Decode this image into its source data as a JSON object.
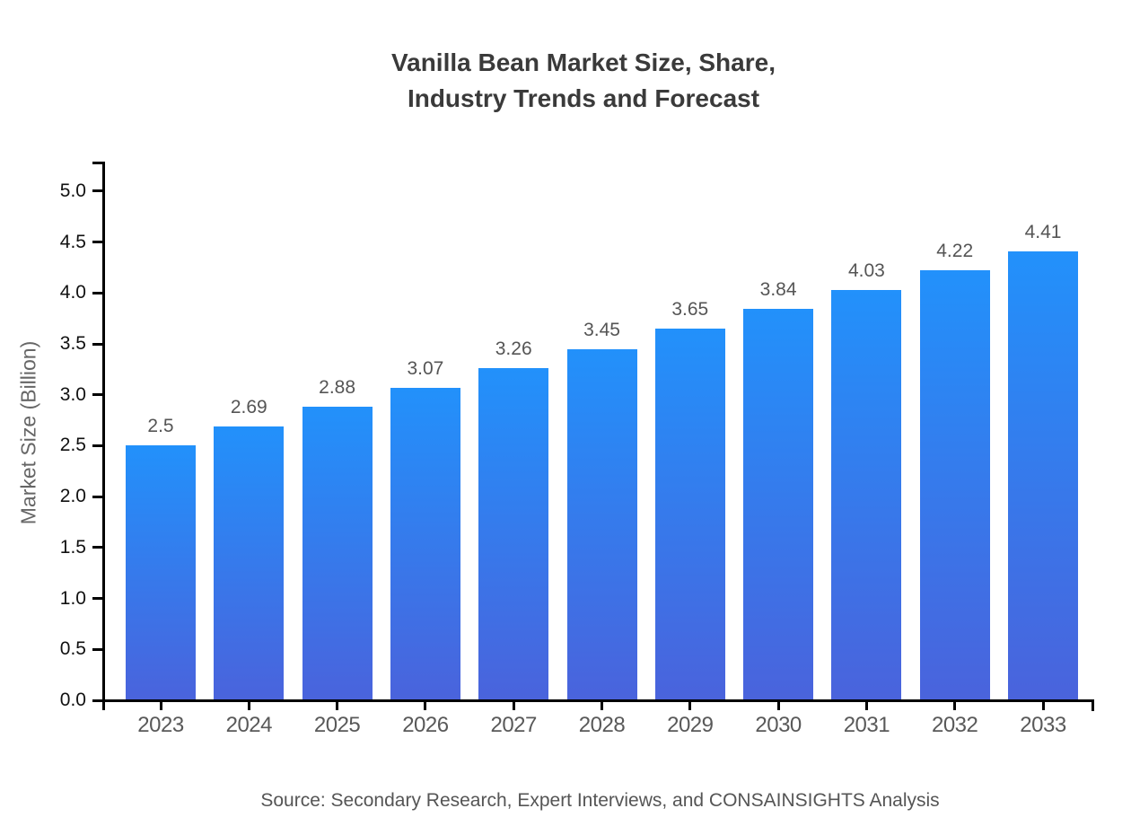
{
  "chart_data": {
    "type": "bar",
    "title_lines": [
      "Vanilla Bean Market Size, Share,",
      "Industry Trends and Forecast"
    ],
    "categories": [
      "2023",
      "2024",
      "2025",
      "2026",
      "2027",
      "2028",
      "2029",
      "2030",
      "2031",
      "2032",
      "2033"
    ],
    "values": [
      2.5,
      2.69,
      2.88,
      3.07,
      3.26,
      3.45,
      3.65,
      3.84,
      4.03,
      4.22,
      4.41
    ],
    "value_labels": [
      "2.5",
      "2.69",
      "2.88",
      "3.07",
      "3.26",
      "3.45",
      "3.65",
      "3.84",
      "4.03",
      "4.22",
      "4.41"
    ],
    "xlabel": "",
    "ylabel": "Market Size (Billion)",
    "ytick_labels": [
      "0.0",
      "0.5",
      "1.0",
      "1.5",
      "2.0",
      "2.5",
      "3.0",
      "3.5",
      "4.0",
      "4.5",
      "5.0"
    ],
    "ytick_values": [
      0.0,
      0.5,
      1.0,
      1.5,
      2.0,
      2.5,
      3.0,
      3.5,
      4.0,
      4.5,
      5.0
    ],
    "ylim": [
      0,
      5.29
    ],
    "grid": false,
    "legend": false,
    "source": "Source: Secondary Research, Expert Interviews, and CONSAINSIGHTS Analysis",
    "colors": {
      "bar_gradient_top": "#2291fb",
      "bar_gradient_bottom": "#4a63dc",
      "axis": "#000000",
      "ytick_label": "#111111",
      "xtick_label": "#595959",
      "value_label": "#555555",
      "axis_title": "#666666",
      "title": "#3a3a3a",
      "source_text": "#555555",
      "background": "#ffffff"
    }
  }
}
